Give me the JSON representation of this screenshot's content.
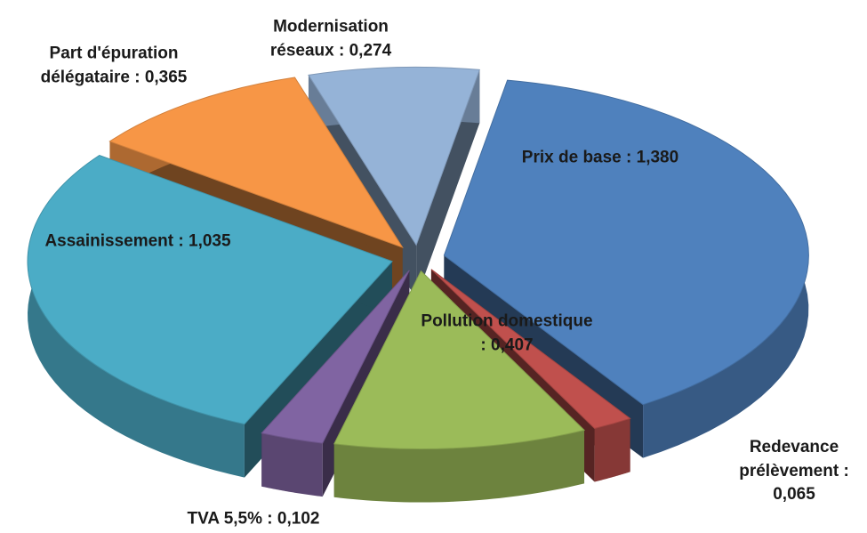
{
  "chart_data": {
    "type": "pie",
    "categories": [
      "Prix de base :",
      "Redevance prélèvement :",
      "Pollution domestique :",
      "TVA 5,5% :",
      "Assainissement :",
      "Part d'épuration délégataire :",
      "Modernisation réseaux :"
    ],
    "values": [
      1.38,
      0.065,
      0.407,
      0.102,
      1.035,
      0.365,
      0.274
    ],
    "value_labels": [
      "1,380",
      "0,065",
      "0,407",
      "0,102",
      "1,035",
      "0,365",
      "0,274"
    ],
    "colors": [
      "#4f81bd",
      "#c0504d",
      "#9bbb59",
      "#8064a2",
      "#4bacc6",
      "#f79646",
      "#95b3d7"
    ],
    "exploded": true,
    "three_d": true
  }
}
